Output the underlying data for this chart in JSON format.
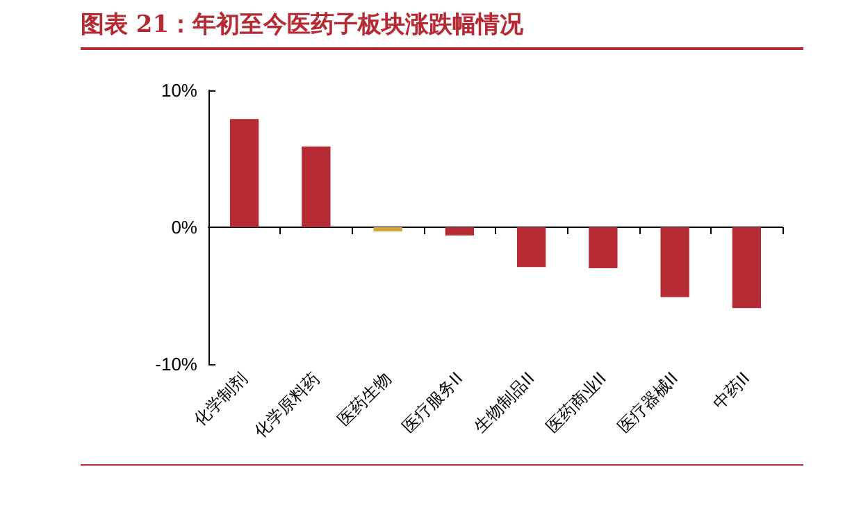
{
  "chart_data": {
    "type": "bar",
    "title": "图表 21：年初至今医药子板块涨跌幅情况",
    "categories": [
      "化学制剂",
      "化学原料药",
      "医药生物",
      "医疗服务II",
      "生物制品II",
      "医药商业II",
      "医疗器械II",
      "中药II"
    ],
    "values": [
      7.9,
      5.9,
      -0.3,
      -0.6,
      -2.9,
      -3.0,
      -5.1,
      -5.9
    ],
    "colors": [
      "#b52a33",
      "#b52a33",
      "#d4a437",
      "#b52a33",
      "#b52a33",
      "#b52a33",
      "#b52a33",
      "#b52a33"
    ],
    "ylim": [
      -10,
      10
    ],
    "yticks": [
      {
        "value": -10,
        "label": "-10%"
      },
      {
        "value": 0,
        "label": "0%"
      },
      {
        "value": 10,
        "label": "10%"
      }
    ]
  }
}
